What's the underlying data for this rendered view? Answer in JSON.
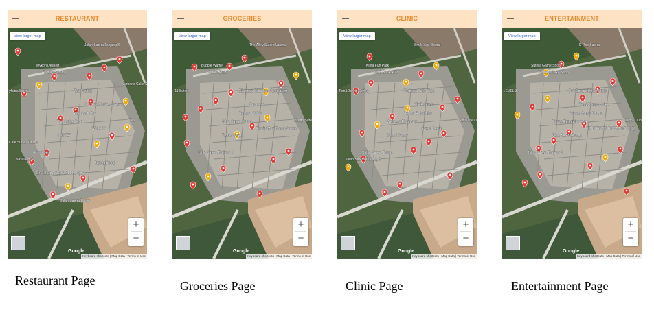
{
  "panels": [
    {
      "title": "RESTAURANT",
      "larger_map": "View larger map",
      "zoom_in": "+",
      "zoom_out": "−",
      "attribution": "Keyboard shortcuts | Map Data | Terms of Use",
      "google": "Google",
      "labels": [
        "Mykon Dessert",
        "Taman Sutera",
        "Tea Garden",
        "GC Good Coffee Sutera",
        "yfaltra Sutera",
        "Jalan Sutera Tanjung 8",
        "The Sushi Bar",
        "The Coffee Bean",
        "WOLOLY",
        "Tea",
        "ONSTEP",
        "Grand Set",
        "Nasi Lemak",
        "Cafe Sutera Utama",
        "Jurong Seoul",
        "EIT LIFESTYLE SDN BHD (HQ)",
        "Jalan Sutera Danga",
        "Verbena Cake Shop"
      ],
      "caption": "Restaurant Page"
    },
    {
      "title": "GROCERIES",
      "larger_map": "View larger map",
      "zoom_in": "+",
      "zoom_out": "−",
      "attribution": "Keyboard shortcuts | Map Data | Terms of Use",
      "google": "Google",
      "labels": [
        "Bubble Waffle",
        "Sutera Fruits",
        "Niyumatu Japanese Restaurant",
        "Japanese",
        ".11 Sutera",
        "The Alley Sutera Utama",
        "Restoran Wulu",
        "Jalan Sutera Danga",
        "Family Mart Taman Sutera",
        "Margo Sutera",
        "Taman Sutera",
        "Jalan Sutera Tanjung 8"
      ],
      "caption": "Groceries Page"
    },
    {
      "title": "CLINIC",
      "larger_map": "View larger map",
      "zoom_in": "+",
      "zoom_out": "−",
      "attribution": "Keyboard shortcuts | Map Data | Terms of Use",
      "google": "Google",
      "labels": [
        "Kinta Fun Park",
        "CIMB Bank ATM",
        "Verbena Cake Shop",
        "Klinik Sutera",
        "Tom&Danny Coffee",
        "Smile Age Dental",
        "Perima Polyclinics",
        "Wellness Pharmacy",
        "Sutera Dental",
        "Smileage Dental",
        "Dental Center",
        "Jalan Sutera Danga",
        "Jalan Sutera Tanjung 8"
      ],
      "caption": "Clinic Page"
    },
    {
      "title": "ENTERTAINMENT",
      "larger_map": "View larger map",
      "zoom_in": "+",
      "zoom_out": "−",
      "attribution": "Keyboard shortcuts | Map Data | Terms of Use",
      "google": "Google",
      "labels": [
        "Sutera Game Shop",
        "Verbena Cake Shop",
        "Pop Entertainment Store",
        "Tom&Danny Coffee",
        "LEVEL 3",
        "K-Pop Sutera",
        "Garden Sutera Utama",
        "Photee Entertainment",
        "EIT LIFESTYLE SDN BHD (HQ)",
        "Knight Club Sutera Tanjung",
        "Jalan Sutera Danga",
        "Jalan Sutera Tanjung 8"
      ],
      "caption": "Entertainment Page"
    }
  ]
}
